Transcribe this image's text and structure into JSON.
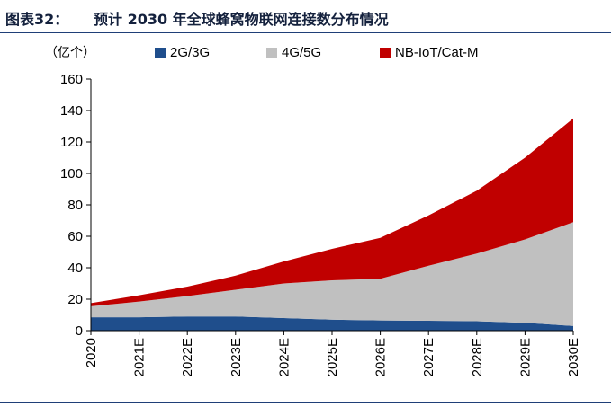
{
  "header": {
    "figure_label": "图表32：",
    "title": "预计 2030 年全球蜂窝物联网连接数分布情况"
  },
  "chart_data": {
    "type": "area",
    "stacked": true,
    "unit_label": "（亿个）",
    "categories": [
      "2020",
      "2021E",
      "2022E",
      "2023E",
      "2024E",
      "2025E",
      "2026E",
      "2027E",
      "2028E",
      "2029E",
      "2030E"
    ],
    "series": [
      {
        "name": "2G/3G",
        "color": "#1f4e8c",
        "values": [
          8.5,
          8.5,
          9,
          9,
          8,
          7,
          6.5,
          6.3,
          6,
          5,
          3
        ]
      },
      {
        "name": "4G/5G",
        "color": "#c0c0c0",
        "values": [
          7,
          10,
          13,
          17,
          22,
          25,
          26.5,
          35,
          43,
          53,
          66
        ]
      },
      {
        "name": "NB-IoT/Cat-M",
        "color": "#c00000",
        "values": [
          2,
          4,
          6,
          9,
          14,
          20,
          26,
          32,
          40,
          52,
          66
        ]
      }
    ],
    "yticks": [
      0,
      20,
      40,
      60,
      80,
      100,
      120,
      140,
      160
    ],
    "ylim": [
      0,
      160
    ],
    "legend_position": "top",
    "grid": false
  }
}
